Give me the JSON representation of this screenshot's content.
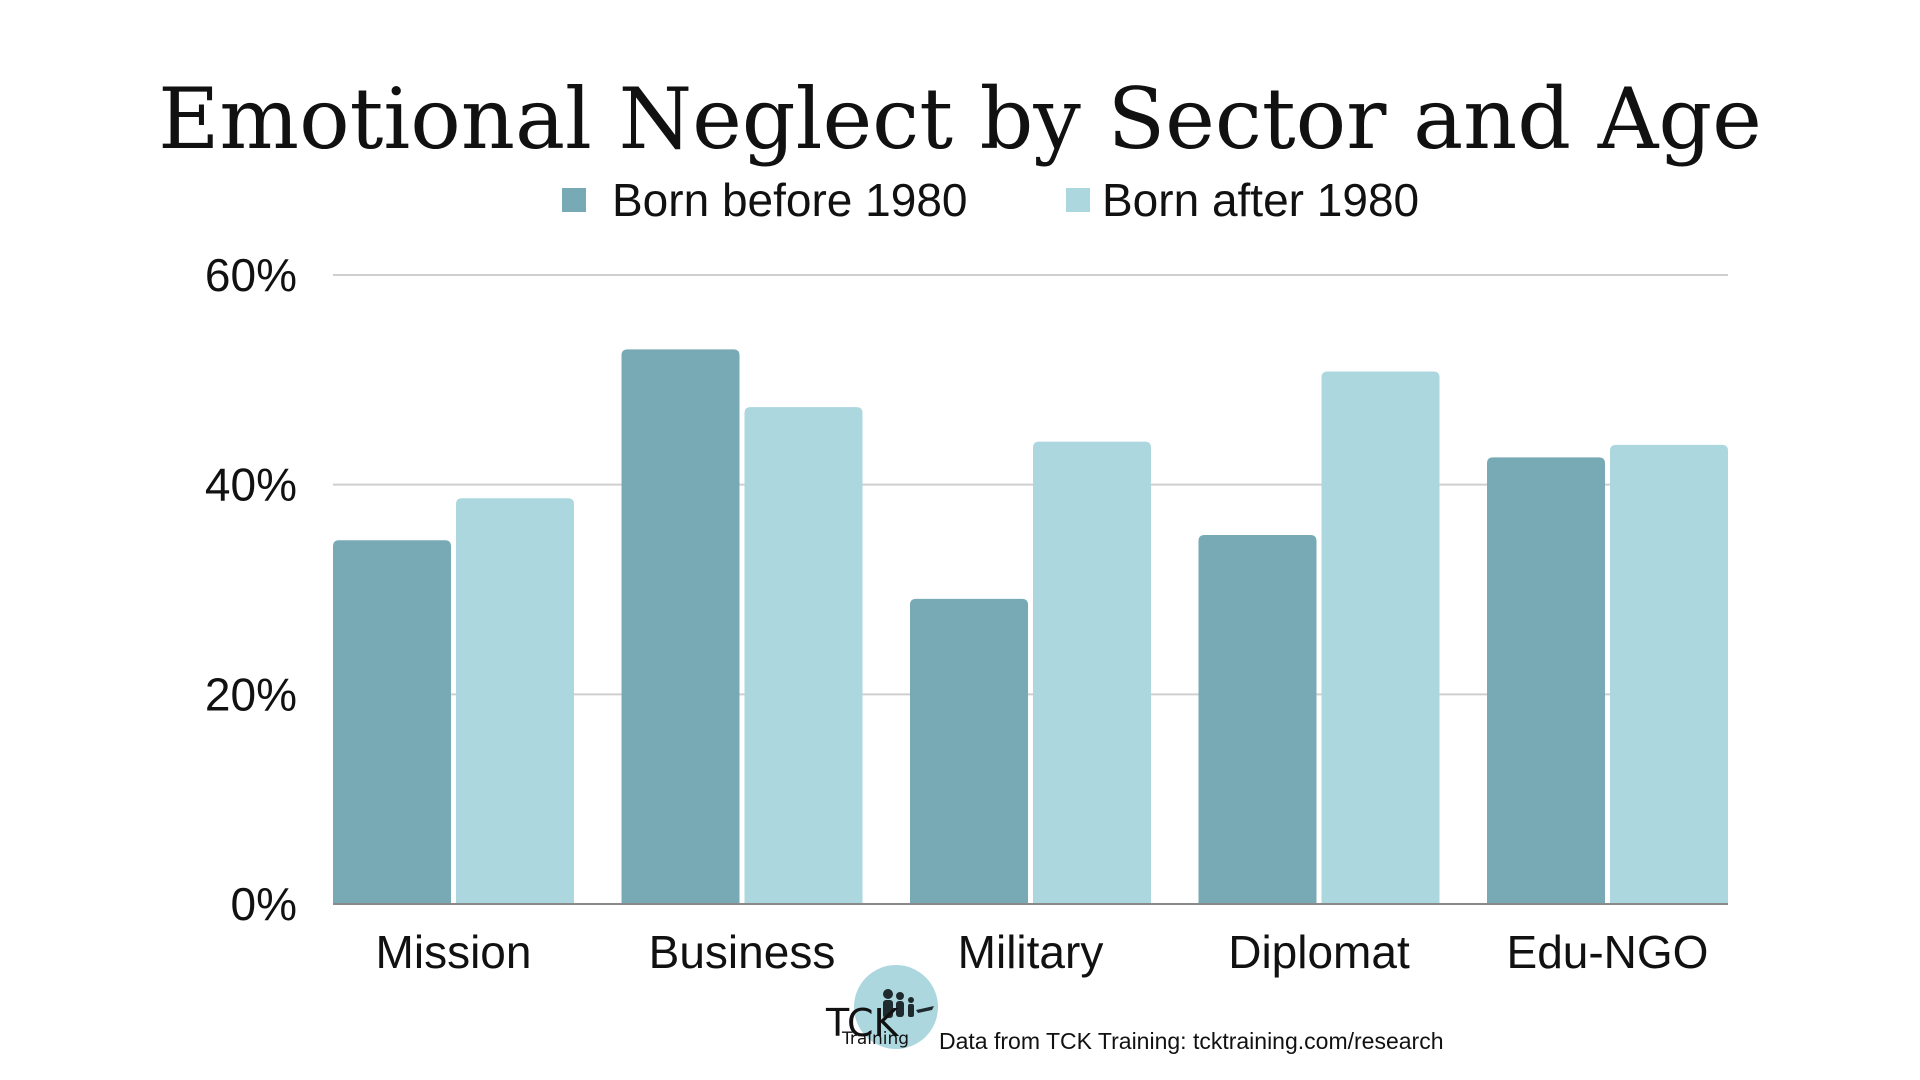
{
  "chart_data": {
    "type": "bar",
    "title": "Emotional Neglect by Sector and Age",
    "categories": [
      "Mission",
      "Business",
      "Military",
      "Diplomat",
      "Edu-NGO"
    ],
    "series": [
      {
        "name": "Born before 1980",
        "values": [
          34.7,
          52.9,
          29.1,
          35.2,
          42.6
        ],
        "color": "#78aab5"
      },
      {
        "name": "Born after 1980",
        "values": [
          38.7,
          47.4,
          44.1,
          50.8,
          43.8
        ],
        "color": "#acd7df"
      }
    ],
    "ylim": [
      0,
      60
    ],
    "yticks": [
      "0%",
      "20%",
      "40%",
      "60%"
    ],
    "ytick_values": [
      0,
      20,
      40,
      60
    ],
    "grid": true,
    "legend_position": "top-center",
    "xlabel": "",
    "ylabel": ""
  },
  "logo": {
    "text_primary": "TCK",
    "text_secondary": "Training",
    "icon": "family-silhouette-icon",
    "circle_color": "#acd7df"
  },
  "source": "Data from TCK Training: tcktraining.com/research"
}
